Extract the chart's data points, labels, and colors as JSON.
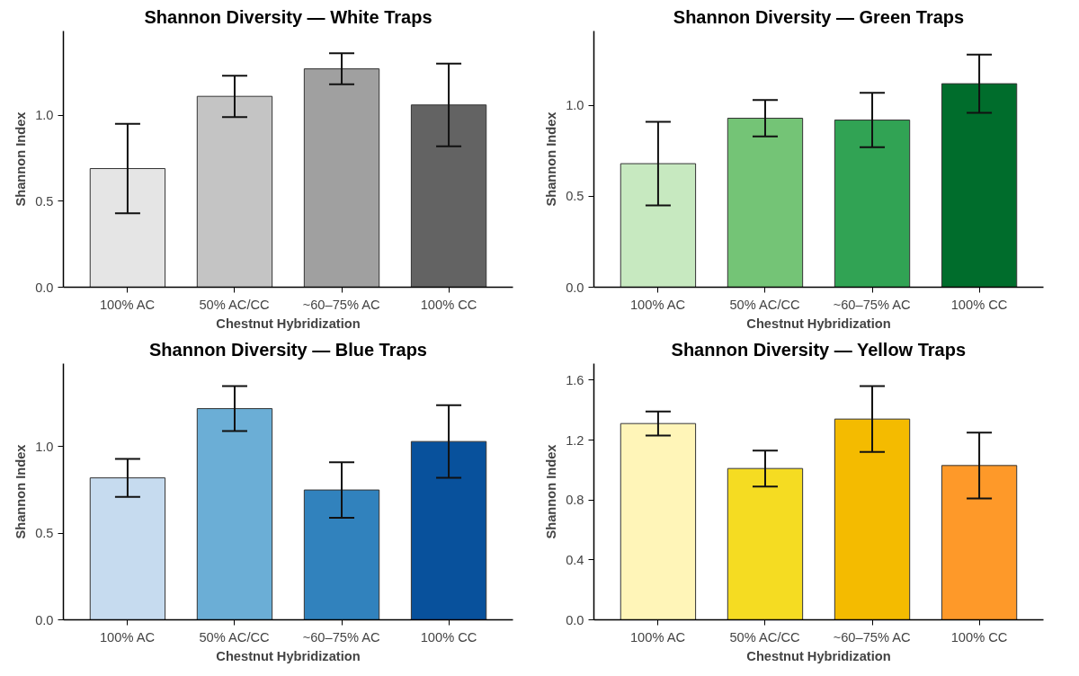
{
  "chart_data": [
    {
      "type": "bar",
      "title": "Shannon Diversity — White Traps",
      "xlabel": "Chestnut Hybridization",
      "ylabel": "Shannon Index",
      "categories": [
        "100% AC",
        "50% AC/CC",
        "~60–75% AC",
        "100% CC"
      ],
      "values": [
        0.69,
        1.11,
        1.27,
        1.06
      ],
      "errors": [
        0.26,
        0.12,
        0.09,
        0.24
      ],
      "colors": [
        "#e5e5e5",
        "#c4c4c4",
        "#a0a0a0",
        "#636363"
      ],
      "ylim": [
        0,
        1.49
      ],
      "yticks": [
        {
          "value": 0,
          "label": "0.0"
        },
        {
          "value": 0.5,
          "label": "0.5"
        },
        {
          "value": 1,
          "label": "1.0"
        }
      ]
    },
    {
      "type": "bar",
      "title": "Shannon Diversity — Green Traps",
      "xlabel": "Chestnut Hybridization",
      "ylabel": "Shannon Index",
      "categories": [
        "100% AC",
        "50% AC/CC",
        "~60–75% AC",
        "100% CC"
      ],
      "values": [
        0.68,
        0.93,
        0.92,
        1.12
      ],
      "errors": [
        0.23,
        0.1,
        0.15,
        0.16
      ],
      "colors": [
        "#c7e9c0",
        "#74c476",
        "#31a354",
        "#006d2c"
      ],
      "ylim": [
        0,
        1.41
      ],
      "yticks": [
        {
          "value": 0,
          "label": "0.0"
        },
        {
          "value": 0.5,
          "label": "0.5"
        },
        {
          "value": 1,
          "label": "1.0"
        }
      ]
    },
    {
      "type": "bar",
      "title": "Shannon Diversity — Blue Traps",
      "xlabel": "Chestnut Hybridization",
      "ylabel": "Shannon Index",
      "categories": [
        "100% AC",
        "50% AC/CC",
        "~60–75% AC",
        "100% CC"
      ],
      "values": [
        0.82,
        1.22,
        0.75,
        1.03
      ],
      "errors": [
        0.11,
        0.13,
        0.16,
        0.21
      ],
      "colors": [
        "#c6dbef",
        "#6baed6",
        "#3182bd",
        "#08519c"
      ],
      "ylim": [
        0,
        1.48
      ],
      "yticks": [
        {
          "value": 0,
          "label": "0.0"
        },
        {
          "value": 0.5,
          "label": "0.5"
        },
        {
          "value": 1,
          "label": "1.0"
        }
      ]
    },
    {
      "type": "bar",
      "title": "Shannon Diversity — Yellow Traps",
      "xlabel": "Chestnut Hybridization",
      "ylabel": "Shannon Index",
      "categories": [
        "100% AC",
        "50% AC/CC",
        "~60–75% AC",
        "100% CC"
      ],
      "values": [
        1.31,
        1.01,
        1.34,
        1.03
      ],
      "errors": [
        0.08,
        0.12,
        0.22,
        0.22
      ],
      "colors": [
        "#fff5b8",
        "#f5dc22",
        "#f4bb00",
        "#fe9929"
      ],
      "ylim": [
        0,
        1.71
      ],
      "yticks": [
        {
          "value": 0,
          "label": "0.0"
        },
        {
          "value": 0.4,
          "label": "0.4"
        },
        {
          "value": 0.8,
          "label": "0.8"
        },
        {
          "value": 1.2,
          "label": "1.2"
        },
        {
          "value": 1.6,
          "label": "1.6"
        }
      ]
    }
  ]
}
